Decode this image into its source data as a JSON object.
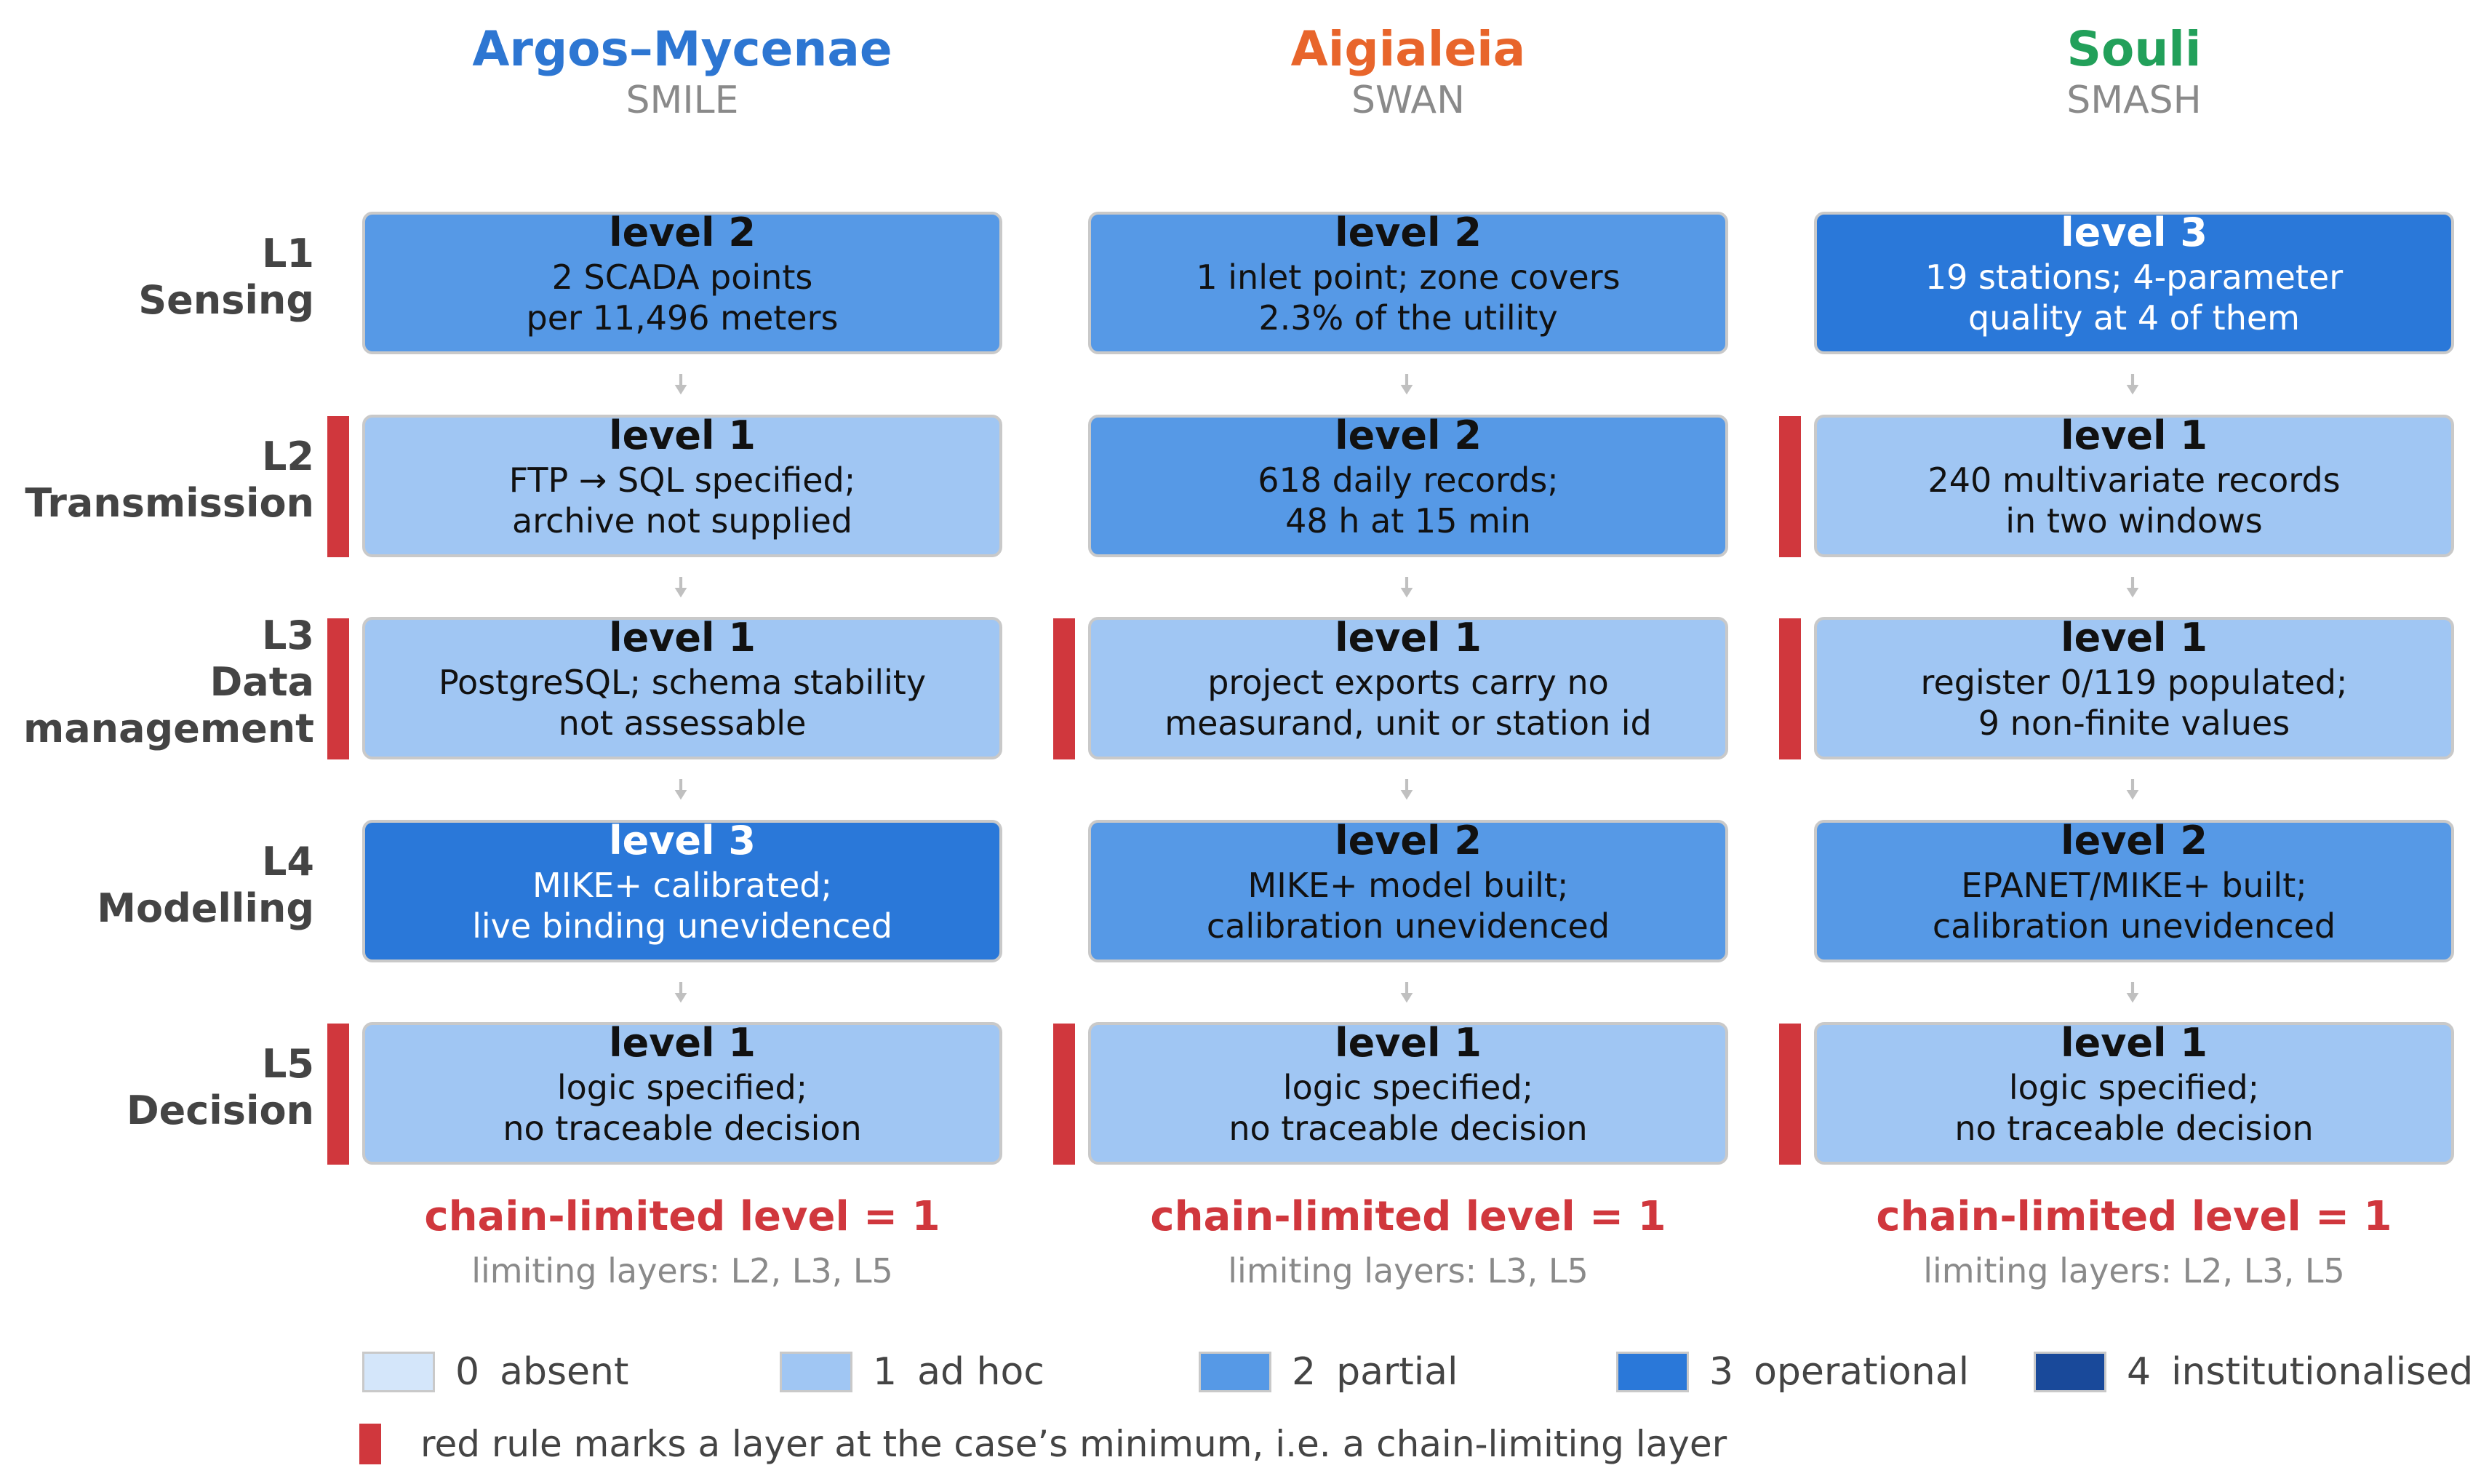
{
  "cases": [
    {
      "name": "Argos–Mycenae",
      "sub": "SMILE",
      "color": "#2d76d2"
    },
    {
      "name": "Aigialeia",
      "sub": "SWAN",
      "color": "#e8652b"
    },
    {
      "name": "Souli",
      "sub": "SMASH",
      "color": "#22a05a"
    }
  ],
  "rows": [
    {
      "code": "L1",
      "name1": "Sensing",
      "name2": ""
    },
    {
      "code": "L2",
      "name1": "Transmission",
      "name2": ""
    },
    {
      "code": "L3",
      "name1": "Data",
      "name2": "management"
    },
    {
      "code": "L4",
      "name1": "Modelling",
      "name2": ""
    },
    {
      "code": "L5",
      "name1": "Decision",
      "name2": ""
    }
  ],
  "cells": [
    [
      {
        "level": 2,
        "level_label": "level 2",
        "line1": "2 SCADA points",
        "line2": "per 11,496 meters",
        "limiting": false
      },
      {
        "level": 1,
        "level_label": "level 1",
        "line1": "FTP → SQL specified;",
        "line2": "archive not supplied",
        "limiting": true
      },
      {
        "level": 1,
        "level_label": "level 1",
        "line1": "PostgreSQL; schema stability",
        "line2": "not assessable",
        "limiting": true
      },
      {
        "level": 3,
        "level_label": "level 3",
        "line1": "MIKE+ calibrated;",
        "line2": "live binding unevidenced",
        "limiting": false
      },
      {
        "level": 1,
        "level_label": "level 1",
        "line1": "logic specified;",
        "line2": "no traceable decision",
        "limiting": true
      }
    ],
    [
      {
        "level": 2,
        "level_label": "level 2",
        "line1": "1 inlet point; zone covers",
        "line2": "2.3% of the utility",
        "limiting": false
      },
      {
        "level": 2,
        "level_label": "level 2",
        "line1": "618 daily records;",
        "line2": "48 h at 15 min",
        "limiting": false
      },
      {
        "level": 1,
        "level_label": "level 1",
        "line1": "project exports carry no",
        "line2": "measurand, unit or station id",
        "limiting": true
      },
      {
        "level": 2,
        "level_label": "level 2",
        "line1": "MIKE+ model built;",
        "line2": "calibration unevidenced",
        "limiting": false
      },
      {
        "level": 1,
        "level_label": "level 1",
        "line1": "logic specified;",
        "line2": "no traceable decision",
        "limiting": true
      }
    ],
    [
      {
        "level": 3,
        "level_label": "level 3",
        "line1": "19 stations; 4-parameter",
        "line2": "quality at 4 of them",
        "limiting": false
      },
      {
        "level": 1,
        "level_label": "level 1",
        "line1": "240 multivariate records",
        "line2": "in two windows",
        "limiting": true
      },
      {
        "level": 1,
        "level_label": "level 1",
        "line1": "register 0/119 populated;",
        "line2": "9 non-finite values",
        "limiting": true
      },
      {
        "level": 2,
        "level_label": "level 2",
        "line1": "EPANET/MIKE+ built;",
        "line2": "calibration unevidenced",
        "limiting": false
      },
      {
        "level": 1,
        "level_label": "level 1",
        "line1": "logic specified;",
        "line2": "no traceable decision",
        "limiting": true
      }
    ]
  ],
  "summary": [
    {
      "chain": "chain-limited level = 1",
      "limiting": "limiting layers: L2, L3, L5"
    },
    {
      "chain": "chain-limited level = 1",
      "limiting": "limiting layers: L3, L5"
    },
    {
      "chain": "chain-limited level = 1",
      "limiting": "limiting layers: L2, L3, L5"
    }
  ],
  "legend": [
    {
      "num": "0",
      "label": "absent",
      "color": "#d4e6fa"
    },
    {
      "num": "1",
      "label": "ad hoc",
      "color": "#a0c6f3"
    },
    {
      "num": "2",
      "label": "partial",
      "color": "#5699e6"
    },
    {
      "num": "3",
      "label": "operational",
      "color": "#2a78d9"
    },
    {
      "num": "4",
      "label": "institutionalised",
      "color": "#19499a"
    }
  ],
  "legend_note": "red rule marks a layer at the case’s minimum, i.e. a chain-limiting layer",
  "colors": {
    "red_rule": "#d0373d",
    "arrow": "#c0c0c0",
    "cell_border": "#c9c9c9"
  }
}
